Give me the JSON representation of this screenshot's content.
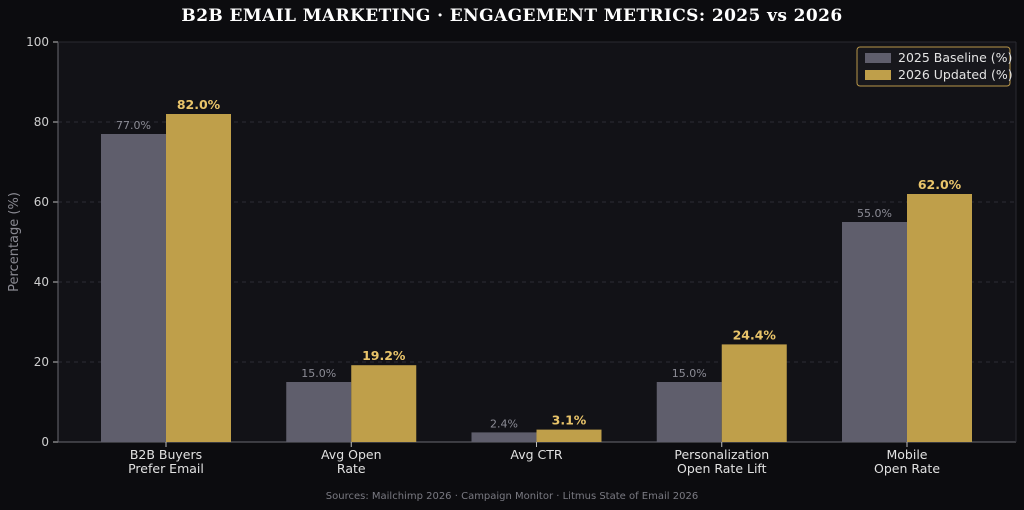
{
  "chart_data": {
    "type": "bar",
    "title": "B2B EMAIL MARKETING  ·  ENGAGEMENT METRICS: 2025 vs 2026",
    "ylabel": "Percentage (%)",
    "xlabel": "",
    "ylim": [
      0,
      100
    ],
    "yticks": [
      0,
      20,
      40,
      60,
      80,
      100
    ],
    "grid": "y-dashed",
    "legend_position": "top-right",
    "categories": [
      [
        "B2B Buyers",
        "Prefer Email"
      ],
      [
        "Avg Open",
        "Rate"
      ],
      [
        "Avg CTR"
      ],
      [
        "Personalization",
        "Open Rate Lift"
      ],
      [
        "Mobile",
        "Open Rate"
      ]
    ],
    "series": [
      {
        "name": "2025 Baseline (%)",
        "color": "#5f5e6c",
        "values": [
          77.0,
          15.0,
          2.4,
          15.0,
          55.0
        ],
        "labels": [
          "77.0%",
          "15.0%",
          "2.4%",
          "15.0%",
          "55.0%"
        ]
      },
      {
        "name": "2026 Updated (%)",
        "color": "#bf9f4a",
        "values": [
          82.0,
          19.2,
          3.1,
          24.4,
          62.0
        ],
        "labels": [
          "82.0%",
          "19.2%",
          "3.1%",
          "24.4%",
          "62.0%"
        ]
      }
    ],
    "source": "Sources: Mailchimp 2026 · Campaign Monitor · Litmus State of Email 2026"
  }
}
